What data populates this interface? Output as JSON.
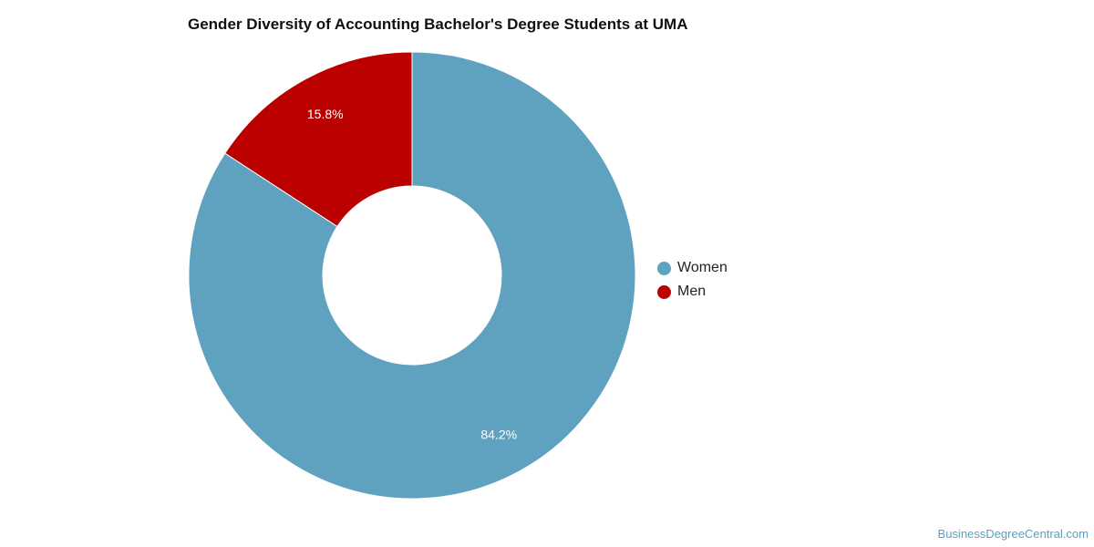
{
  "chart_data": {
    "type": "pie",
    "donut": true,
    "title": "Gender Diversity of Accounting Bachelor's Degree Students at UMA",
    "series": [
      {
        "name": "Women",
        "value": 84.2,
        "label": "84.2%",
        "color": "#5ea2bf"
      },
      {
        "name": "Men",
        "value": 15.8,
        "label": "15.8%",
        "color": "#bb0000"
      }
    ],
    "legend_position": "right"
  },
  "watermark": "BusinessDegreeCentral.com"
}
